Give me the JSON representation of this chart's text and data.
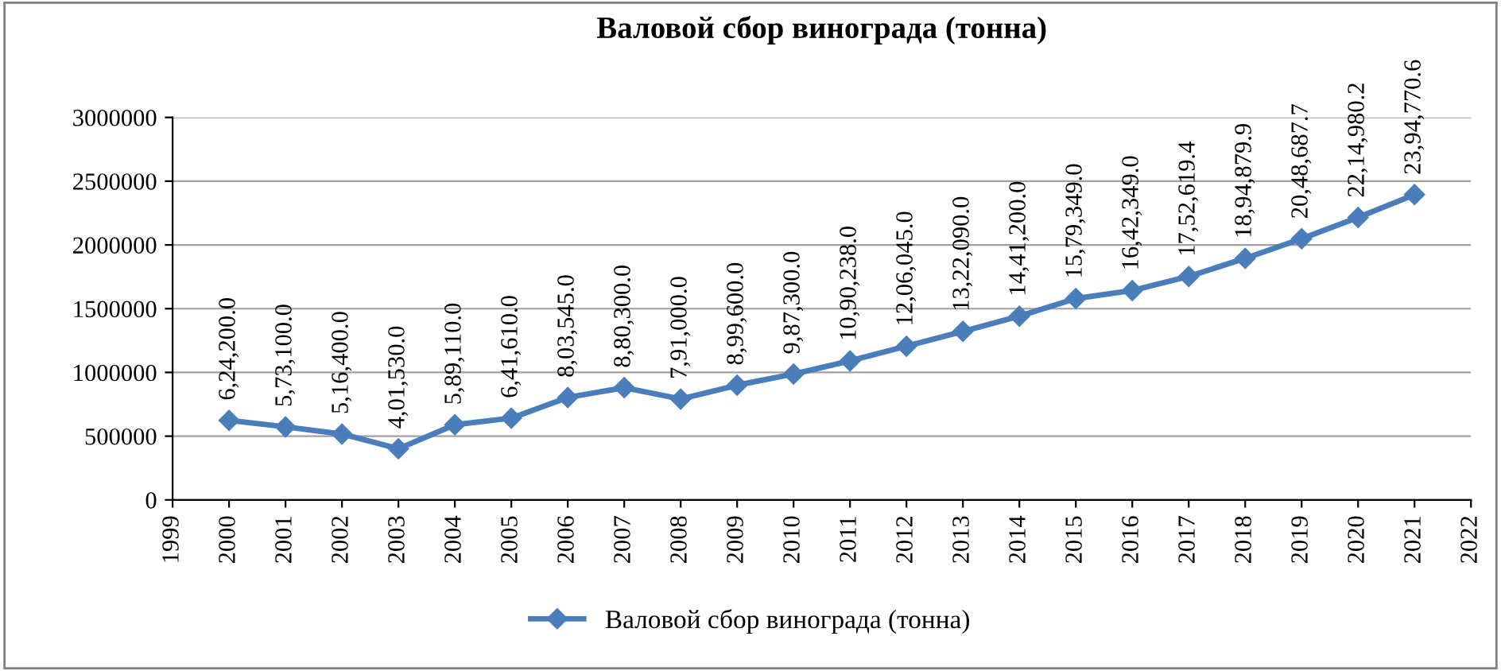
{
  "chart_data": {
    "type": "line",
    "title": "Валовой сбор винограда (тонна)",
    "x": [
      2000,
      2001,
      2002,
      2003,
      2004,
      2005,
      2006,
      2007,
      2008,
      2009,
      2010,
      2011,
      2012,
      2013,
      2014,
      2015,
      2016,
      2017,
      2018,
      2019,
      2020,
      2021
    ],
    "series": [
      {
        "name": "Валовой сбор винограда (тонна)",
        "color": "#4a7ebb",
        "values": [
          624200,
          573100,
          516400,
          401530,
          589110,
          641610,
          803545,
          880300,
          791000,
          899600,
          987300,
          1090238,
          1206045,
          1322090,
          1441200,
          1579349,
          1642349,
          1752619.4,
          1894879.9,
          2048687.7,
          2214980.2,
          2394770.6
        ],
        "value_labels": [
          "6,24,200.0",
          "5,73,100.0",
          "5,16,400.0",
          "4,01,530.0",
          "5,89,110.0",
          "6,41,610.0",
          "8,03,545.0",
          "8,80,300.0",
          "7,91,000.0",
          "8,99,600.0",
          "9,87,300.0",
          "10,90,238.0",
          "12,06,045.0",
          "13,22,090.0",
          "14,41,200.0",
          "15,79,349.0",
          "16,42,349.0",
          "17,52,619.4",
          "18,94,879.9",
          "20,48,687.7",
          "22,14,980.2",
          "23,94,770.6"
        ]
      }
    ],
    "xlim": [
      1999,
      2022
    ],
    "xticks": [
      1999,
      2000,
      2001,
      2002,
      2003,
      2004,
      2005,
      2006,
      2007,
      2008,
      2009,
      2010,
      2011,
      2012,
      2013,
      2014,
      2015,
      2016,
      2017,
      2018,
      2019,
      2020,
      2021,
      2022
    ],
    "ylim": [
      0,
      3000000
    ],
    "yticks": [
      0,
      500000,
      1000000,
      1500000,
      2000000,
      2500000,
      3000000
    ],
    "grid": "y",
    "legend": "bottom",
    "marker": "diamond",
    "line_style": "solid"
  }
}
